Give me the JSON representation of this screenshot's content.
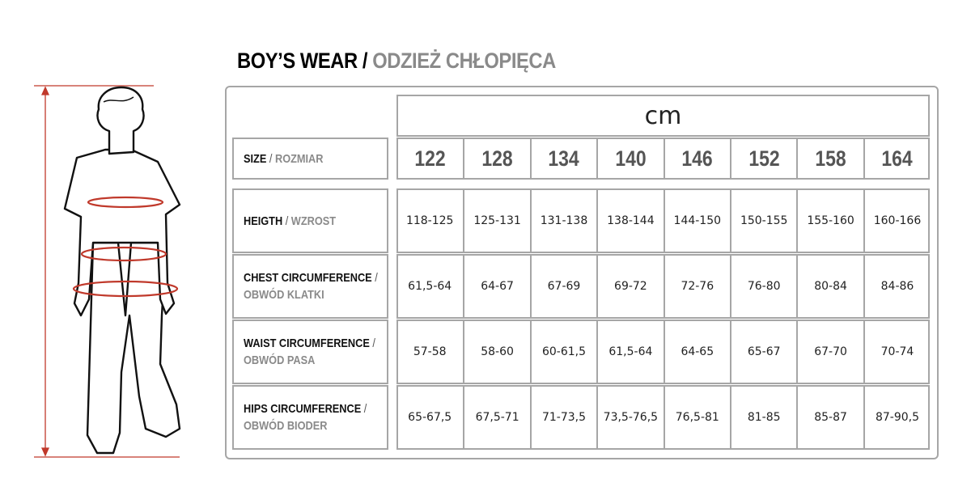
{
  "title": {
    "en": "BOY’S WEAR",
    "separator": " / ",
    "pl": "ODZIEŻ CHŁOPIĘCA"
  },
  "unit": "cm",
  "size_label": {
    "en": "SIZE",
    "pl": "ROZMIAR"
  },
  "sizes": [
    "122",
    "128",
    "134",
    "140",
    "146",
    "152",
    "158",
    "164"
  ],
  "rows": [
    {
      "en": "HEIGTH",
      "pl": "WZROST",
      "values": [
        "118-125",
        "125-131",
        "131-138",
        "138-144",
        "144-150",
        "150-155",
        "155-160",
        "160-166"
      ]
    },
    {
      "en": "CHEST CIRCUMFERENCE",
      "pl": "OBWÓD KLATKI",
      "values": [
        "61,5-64",
        "64-67",
        "67-69",
        "69-72",
        "72-76",
        "76-80",
        "80-84",
        "84-86"
      ]
    },
    {
      "en": "WAIST CIRCUMFERENCE",
      "pl": "OBWÓD PASA",
      "values": [
        "57-58",
        "58-60",
        "60-61,5",
        "61,5-64",
        "64-65",
        "65-67",
        "67-70",
        "70-74"
      ]
    },
    {
      "en": "HIPS CIRCUMFERENCE",
      "pl": "OBWÓD BIODER",
      "values": [
        "65-67,5",
        "67,5-71",
        "71-73,5",
        "73,5-76,5",
        "76,5-81",
        "81-85",
        "85-87",
        "87-90,5"
      ]
    }
  ],
  "colors": {
    "accent": "#c0392b",
    "border": "#a6a6a6",
    "secondary_text": "#8a8a8a"
  },
  "illustration": "boy-figure-with-measurement-lines"
}
